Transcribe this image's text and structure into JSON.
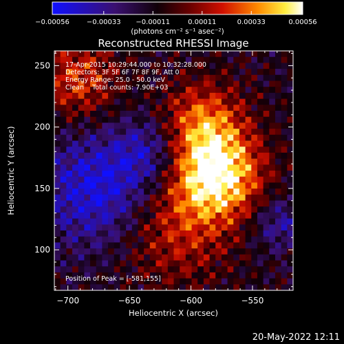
{
  "chart_data": {
    "type": "heatmap",
    "title": "Reconstructed RHESSI Image",
    "xlabel": "Heliocentric X (arcsec)",
    "ylabel": "Heliocentric Y (arcsec)",
    "xlim": [
      -711,
      -517
    ],
    "ylim": [
      67,
      262
    ],
    "x_ticks": [
      -700,
      -650,
      -600,
      -550
    ],
    "y_ticks": [
      100,
      150,
      200,
      250
    ],
    "colorbar": {
      "min": -0.00056,
      "max": 0.00056,
      "ticks": [
        -0.00056,
        -0.00033,
        -0.00011,
        0.00011,
        0.00033,
        0.00056
      ],
      "label": "(photons cm⁻² s⁻¹ asec⁻²)",
      "colors": [
        "#0000ff",
        "#000000",
        "#ff0000",
        "#ffff00",
        "#ffffff"
      ]
    },
    "annotations": [
      "17-Apr-2015 10:29:44.000 to 10:32:28.000",
      "Detectors: 3F 5F 6F 7F 8F 9F, Att 0",
      "Energy Range: 25.0 - 50.0 keV",
      "Clean    Total counts: 7.90E+03",
      "Position of Peak = [-581,155]"
    ],
    "peak": [
      -581,
      155
    ]
  },
  "footer": {
    "timestamp": "20-May-2022 12:11"
  }
}
